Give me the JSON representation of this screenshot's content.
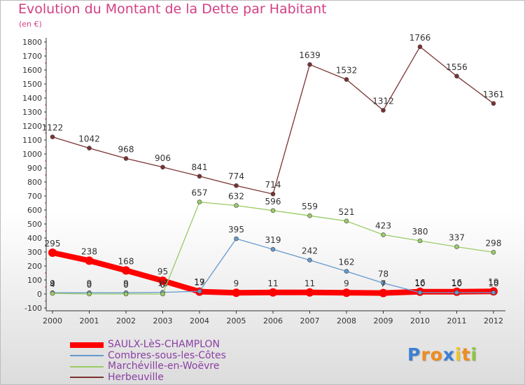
{
  "chart_data": {
    "type": "line",
    "title": "Evolution du Montant de la Dette par Habitant",
    "unit": "(en €)",
    "x": [
      "2000",
      "2001",
      "2002",
      "2003",
      "2004",
      "2005",
      "2006",
      "2007",
      "2008",
      "2009",
      "2010",
      "2011",
      "2012"
    ],
    "ylim": [
      -100,
      1800
    ],
    "yticks": [
      "-100",
      "0",
      "100",
      "200",
      "300",
      "400",
      "500",
      "600",
      "700",
      "800",
      "900",
      "1000",
      "1100",
      "1200",
      "1300",
      "1400",
      "1500",
      "1600",
      "1700",
      "1800"
    ],
    "series": [
      {
        "name": "SAULX-LèS-CHAMPLON",
        "color": "#ff0000",
        "values": [
          295,
          238,
          168,
          95,
          17,
          9,
          11,
          11,
          9,
          7,
          16,
          16,
          19
        ]
      },
      {
        "name": "Combres-sous-les-Côtes",
        "color": "#6699cc",
        "values": [
          9,
          9,
          9,
          12,
          19,
          395,
          319,
          242,
          162,
          78,
          10,
          10,
          10
        ]
      },
      {
        "name": "Marchéville-en-Woëvre",
        "color": "#99cc66",
        "values": [
          4,
          0,
          0,
          0,
          657,
          632,
          596,
          559,
          521,
          423,
          380,
          337,
          298
        ]
      },
      {
        "name": "Herbeuville",
        "color": "#7b3232",
        "values": [
          1122,
          1042,
          968,
          906,
          841,
          774,
          714,
          1639,
          1532,
          1312,
          1766,
          1556,
          1361
        ]
      }
    ],
    "grid": false,
    "legend_position": "bottom-left"
  },
  "logo": {
    "letters": [
      "P",
      "r",
      "o",
      "x",
      "i",
      "t",
      "i"
    ],
    "colors": [
      "#3c7fd4",
      "#f08c1e",
      "#f08c1e",
      "#3c7fd4",
      "#f0c81e",
      "#f08c1e",
      "#8cc63c"
    ]
  }
}
